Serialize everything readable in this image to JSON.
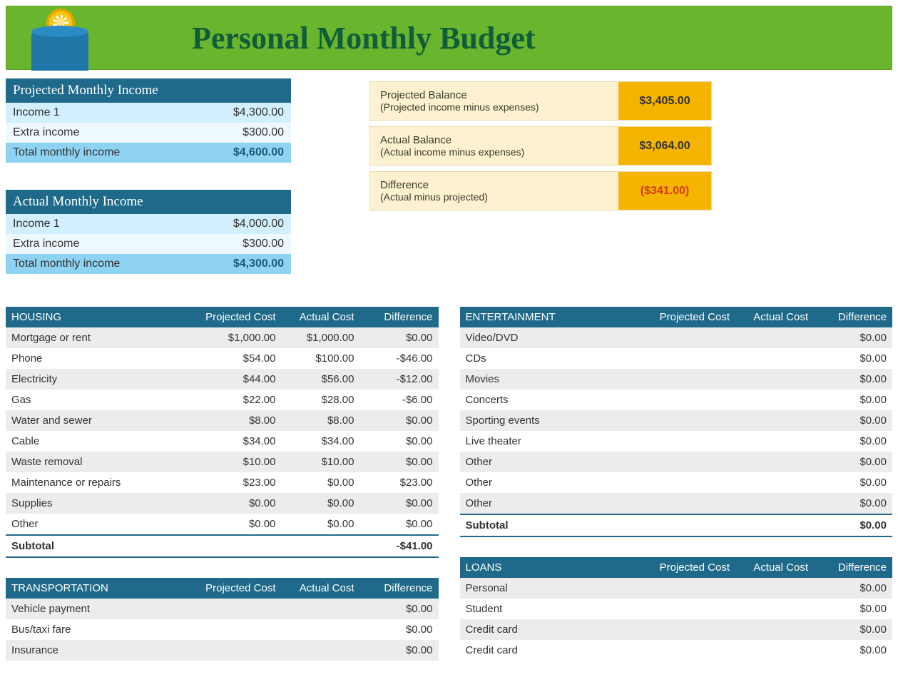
{
  "title": "Personal Monthly Budget",
  "colors": {
    "banner_bg": "#6ab52e",
    "banner_text": "#0f5d3a",
    "header_bg": "#1f6a8a",
    "income_alt0": "#d2efff",
    "income_alt1": "#eef9ff",
    "income_total_bg": "#8fd3f2",
    "balance_label_bg": "#fdf1cf",
    "balance_value_bg": "#f5b400",
    "negative_text": "#d83a1a",
    "row_alt": "#ececec"
  },
  "projected_income": {
    "header": "Projected Monthly Income",
    "rows": [
      {
        "label": "Income 1",
        "value": "$4,300.00"
      },
      {
        "label": "Extra income",
        "value": "$300.00"
      }
    ],
    "total_label": "Total monthly income",
    "total_value": "$4,600.00"
  },
  "actual_income": {
    "header": "Actual Monthly Income",
    "rows": [
      {
        "label": "Income 1",
        "value": "$4,000.00"
      },
      {
        "label": "Extra income",
        "value": "$300.00"
      }
    ],
    "total_label": "Total monthly income",
    "total_value": "$4,300.00"
  },
  "balances": [
    {
      "title": "Projected Balance",
      "subtitle": "(Projected income minus expenses)",
      "value": "$3,405.00",
      "negative": false
    },
    {
      "title": "Actual Balance",
      "subtitle": "(Actual income minus expenses)",
      "value": "$3,064.00",
      "negative": false
    },
    {
      "title": "Difference",
      "subtitle": "(Actual minus projected)",
      "value": "($341.00)",
      "negative": true
    }
  ],
  "column_headers": {
    "projected": "Projected Cost",
    "actual": "Actual Cost",
    "difference": "Difference"
  },
  "subtotal_label": "Subtotal",
  "categories_left": [
    {
      "name": "HOUSING",
      "rows": [
        {
          "label": "Mortgage or rent",
          "proj": "$1,000.00",
          "act": "$1,000.00",
          "diff": "$0.00"
        },
        {
          "label": "Phone",
          "proj": "$54.00",
          "act": "$100.00",
          "diff": "-$46.00"
        },
        {
          "label": "Electricity",
          "proj": "$44.00",
          "act": "$56.00",
          "diff": "-$12.00"
        },
        {
          "label": "Gas",
          "proj": "$22.00",
          "act": "$28.00",
          "diff": "-$6.00"
        },
        {
          "label": "Water and sewer",
          "proj": "$8.00",
          "act": "$8.00",
          "diff": "$0.00"
        },
        {
          "label": "Cable",
          "proj": "$34.00",
          "act": "$34.00",
          "diff": "$0.00"
        },
        {
          "label": "Waste removal",
          "proj": "$10.00",
          "act": "$10.00",
          "diff": "$0.00"
        },
        {
          "label": "Maintenance or repairs",
          "proj": "$23.00",
          "act": "$0.00",
          "diff": "$23.00"
        },
        {
          "label": "Supplies",
          "proj": "$0.00",
          "act": "$0.00",
          "diff": "$0.00"
        },
        {
          "label": "Other",
          "proj": "$0.00",
          "act": "$0.00",
          "diff": "$0.00"
        }
      ],
      "subtotal": "-$41.00"
    },
    {
      "name": "TRANSPORTATION",
      "rows": [
        {
          "label": "Vehicle payment",
          "proj": "",
          "act": "",
          "diff": "$0.00"
        },
        {
          "label": "Bus/taxi fare",
          "proj": "",
          "act": "",
          "diff": "$0.00"
        },
        {
          "label": "Insurance",
          "proj": "",
          "act": "",
          "diff": "$0.00"
        }
      ],
      "subtotal": null
    }
  ],
  "categories_right": [
    {
      "name": "ENTERTAINMENT",
      "rows": [
        {
          "label": "Video/DVD",
          "proj": "",
          "act": "",
          "diff": "$0.00"
        },
        {
          "label": "CDs",
          "proj": "",
          "act": "",
          "diff": "$0.00"
        },
        {
          "label": "Movies",
          "proj": "",
          "act": "",
          "diff": "$0.00"
        },
        {
          "label": "Concerts",
          "proj": "",
          "act": "",
          "diff": "$0.00"
        },
        {
          "label": "Sporting events",
          "proj": "",
          "act": "",
          "diff": "$0.00"
        },
        {
          "label": "Live theater",
          "proj": "",
          "act": "",
          "diff": "$0.00"
        },
        {
          "label": "Other",
          "proj": "",
          "act": "",
          "diff": "$0.00"
        },
        {
          "label": "Other",
          "proj": "",
          "act": "",
          "diff": "$0.00"
        },
        {
          "label": "Other",
          "proj": "",
          "act": "",
          "diff": "$0.00"
        }
      ],
      "subtotal": "$0.00"
    },
    {
      "name": "LOANS",
      "rows": [
        {
          "label": "Personal",
          "proj": "",
          "act": "",
          "diff": "$0.00"
        },
        {
          "label": "Student",
          "proj": "",
          "act": "",
          "diff": "$0.00"
        },
        {
          "label": "Credit card",
          "proj": "",
          "act": "",
          "diff": "$0.00"
        },
        {
          "label": "Credit card",
          "proj": "",
          "act": "",
          "diff": "$0.00"
        }
      ],
      "subtotal": null
    }
  ]
}
